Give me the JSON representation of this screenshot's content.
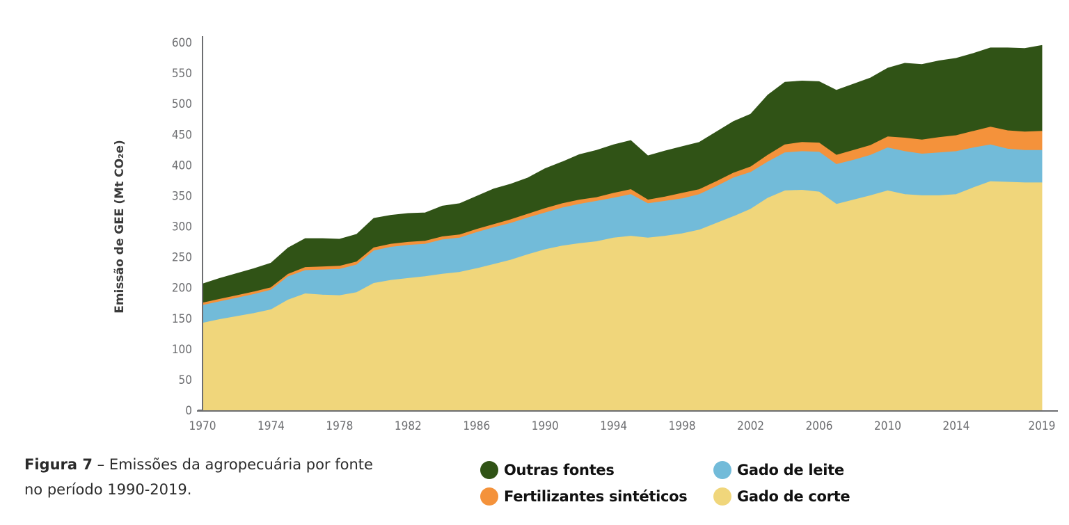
{
  "caption": {
    "label": "Figura 7",
    "text": " – Emissões da agropecuária por fonte no período 1990-2019."
  },
  "chart_data": {
    "type": "area",
    "stacked": true,
    "title": "",
    "xlabel": "",
    "ylabel": "Emissão de GEE (Mt CO₂e)",
    "xlim": [
      1970,
      2019
    ],
    "ylim": [
      0,
      600
    ],
    "yticks": [
      0,
      50,
      100,
      150,
      200,
      250,
      300,
      350,
      400,
      450,
      500,
      550,
      600
    ],
    "xticks": [
      "1970",
      "1974",
      "1978",
      "1982",
      "1986",
      "1990",
      "1994",
      "1998",
      "2002",
      "2006",
      "2010",
      "2014",
      "2019"
    ],
    "grid": false,
    "legend_position": "bottom",
    "x": [
      1970,
      1971,
      1972,
      1973,
      1974,
      1975,
      1976,
      1977,
      1978,
      1979,
      1980,
      1981,
      1982,
      1983,
      1984,
      1985,
      1986,
      1987,
      1988,
      1989,
      1990,
      1991,
      1992,
      1993,
      1994,
      1995,
      1996,
      1997,
      1998,
      1999,
      2000,
      2001,
      2002,
      2003,
      2004,
      2005,
      2006,
      2007,
      2008,
      2009,
      2010,
      2011,
      2012,
      2013,
      2014,
      2015,
      2016,
      2017,
      2018,
      2019
    ],
    "series": [
      {
        "name": "Gado de corte",
        "color": "#f0d67b",
        "values": [
          142,
          148,
          153,
          158,
          164,
          180,
          190,
          188,
          187,
          192,
          207,
          212,
          215,
          218,
          222,
          225,
          231,
          238,
          245,
          254,
          262,
          268,
          272,
          275,
          281,
          284,
          281,
          284,
          288,
          294,
          305,
          316,
          328,
          346,
          358,
          359,
          356,
          336,
          343,
          350,
          358,
          352,
          350,
          350,
          352,
          363,
          373,
          372,
          371,
          371
        ]
      },
      {
        "name": "Gado de leite",
        "color": "#72bbd9",
        "values": [
          29,
          29,
          30,
          31,
          32,
          38,
          38,
          41,
          43,
          45,
          53,
          54,
          54,
          53,
          56,
          56,
          59,
          60,
          60,
          60,
          60,
          62,
          64,
          66,
          65,
          68,
          56,
          57,
          57,
          58,
          60,
          63,
          60,
          59,
          62,
          63,
          65,
          65,
          65,
          66,
          70,
          70,
          68,
          70,
          70,
          65,
          60,
          54,
          53,
          53
        ]
      },
      {
        "name": "Fertilizantes sintéticos",
        "color": "#f4923b",
        "values": [
          4,
          4,
          4,
          4,
          4,
          4,
          5,
          5,
          5,
          5,
          5,
          5,
          5,
          5,
          5,
          5,
          5,
          5,
          6,
          6,
          7,
          7,
          7,
          6,
          8,
          8,
          6,
          7,
          9,
          8,
          8,
          8,
          9,
          11,
          13,
          15,
          15,
          15,
          16,
          16,
          18,
          22,
          23,
          25,
          26,
          27,
          29,
          30,
          30,
          31
        ]
      },
      {
        "name": "Outras fontes",
        "color": "#305316",
        "values": [
          31,
          34,
          36,
          38,
          40,
          43,
          47,
          46,
          44,
          45,
          48,
          47,
          47,
          46,
          50,
          51,
          54,
          58,
          58,
          59,
          65,
          68,
          74,
          77,
          79,
          80,
          72,
          75,
          76,
          77,
          81,
          84,
          86,
          98,
          102,
          100,
          100,
          106,
          108,
          110,
          112,
          122,
          123,
          125,
          126,
          127,
          129,
          135,
          136,
          140
        ]
      }
    ]
  },
  "legend": [
    {
      "label": "Outras fontes",
      "color": "#305316"
    },
    {
      "label": "Gado de leite",
      "color": "#72bbd9"
    },
    {
      "label": "Fertilizantes sintéticos",
      "color": "#f4923b"
    },
    {
      "label": "Gado de corte",
      "color": "#f0d67b"
    }
  ]
}
